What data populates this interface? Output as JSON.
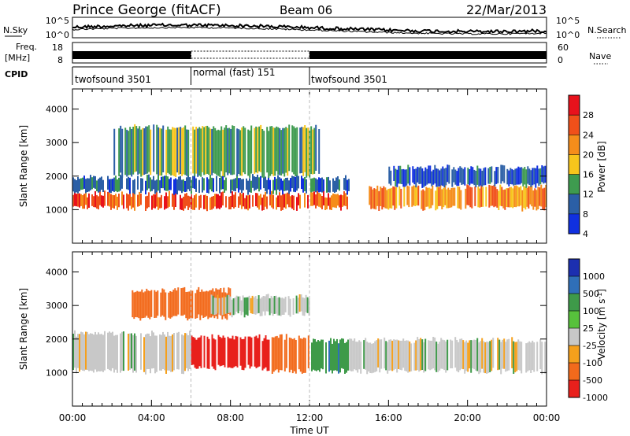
{
  "header": {
    "station": "Prince George (fitACF)",
    "beam": "Beam 06",
    "date": "22/Mar/2013"
  },
  "noise_panel": {
    "left_label": "N.Sky",
    "left_ticks": [
      "10^5",
      "10^0"
    ],
    "right_label": "N.Search",
    "right_ticks": [
      "10^5",
      "10^0"
    ]
  },
  "freq_panel": {
    "left_label_1": "Freq.",
    "left_label_2": "[MHz]",
    "left_ticks": [
      "18",
      "8"
    ],
    "right_label": "Nave",
    "right_ticks": [
      "60",
      "0"
    ]
  },
  "cpid_panel": {
    "label": "CPID",
    "segments": [
      {
        "label": "twofsound 3501",
        "start_hour": 0,
        "end_hour": 6
      },
      {
        "label": "normal (fast) 151",
        "start_hour": 6,
        "end_hour": 12
      },
      {
        "label": "twofsound 3501",
        "start_hour": 12,
        "end_hour": 24
      }
    ]
  },
  "power_colorbar": {
    "title": "Power [dB]",
    "ticks": [
      "28",
      "24",
      "20",
      "16",
      "12",
      "8",
      "4"
    ],
    "colors": [
      "#e8121c",
      "#f0501a",
      "#f58d1b",
      "#f7c51c",
      "#3e9b4f",
      "#2b5fa6",
      "#1030e0"
    ]
  },
  "velocity_colorbar": {
    "title_main": "Velocity [m s",
    "title_sup": "-1",
    "title_end": "]",
    "ticks": [
      "1000",
      "500",
      "100",
      "25",
      "-25",
      "-100",
      "-500",
      "-1000"
    ],
    "colors": [
      "#1c2fb0",
      "#2f6fb8",
      "#3e9a49",
      "#57c13c",
      "#c8c8c8",
      "#f5a01c",
      "#f26a1c",
      "#e8201c"
    ]
  },
  "chart_data": [
    {
      "type": "heatmap",
      "title": "",
      "xlabel": "Time UT",
      "ylabel": "Slant Range [km]",
      "x_ticks": [
        "00:00",
        "04:00",
        "08:00",
        "12:00",
        "16:00",
        "20:00",
        "00:00"
      ],
      "y_ticks": [
        "1000",
        "2000",
        "3000",
        "4000"
      ],
      "xlim_hours": [
        0,
        24
      ],
      "ylim_km": [
        0,
        4600
      ],
      "quantity": "Power [dB]",
      "echo_bands": [
        {
          "start_hour": 0,
          "end_hour": 14,
          "range_km": [
            1000,
            1500
          ],
          "value_db": 26
        },
        {
          "start_hour": 0,
          "end_hour": 14,
          "range_km": [
            1500,
            2000
          ],
          "value_db": 10
        },
        {
          "start_hour": 2,
          "end_hour": 12.5,
          "range_km": [
            2000,
            3500
          ],
          "value_db": 14
        },
        {
          "start_hour": 15,
          "end_hour": 24,
          "range_km": [
            1000,
            1700
          ],
          "value_db": 22
        },
        {
          "start_hour": 16,
          "end_hour": 24,
          "range_km": [
            1700,
            2300
          ],
          "value_db": 9
        }
      ]
    },
    {
      "type": "heatmap",
      "title": "",
      "xlabel": "Time UT",
      "ylabel": "Slant Range [km]",
      "x_ticks": [
        "00:00",
        "04:00",
        "08:00",
        "12:00",
        "16:00",
        "20:00",
        "00:00"
      ],
      "y_ticks": [
        "1000",
        "2000",
        "3000",
        "4000"
      ],
      "xlim_hours": [
        0,
        24
      ],
      "ylim_km": [
        0,
        4600
      ],
      "quantity": "Velocity [m s-1]",
      "echo_bands": [
        {
          "start_hour": 0,
          "end_hour": 6,
          "range_km": [
            1000,
            2200
          ],
          "value_ms": 0
        },
        {
          "start_hour": 6,
          "end_hour": 10,
          "range_km": [
            1100,
            2100
          ],
          "value_ms": -600
        },
        {
          "start_hour": 10,
          "end_hour": 12,
          "range_km": [
            1000,
            2100
          ],
          "value_ms": -150
        },
        {
          "start_hour": 12,
          "end_hour": 14,
          "range_km": [
            1000,
            2000
          ],
          "value_ms": 80
        },
        {
          "start_hour": 3,
          "end_hour": 8,
          "range_km": [
            2600,
            3500
          ],
          "value_ms": -300
        },
        {
          "start_hour": 7,
          "end_hour": 12,
          "range_km": [
            2700,
            3300
          ],
          "value_ms": 0
        },
        {
          "start_hour": 14,
          "end_hour": 24,
          "range_km": [
            1000,
            2000
          ],
          "value_ms": 0
        }
      ]
    }
  ]
}
